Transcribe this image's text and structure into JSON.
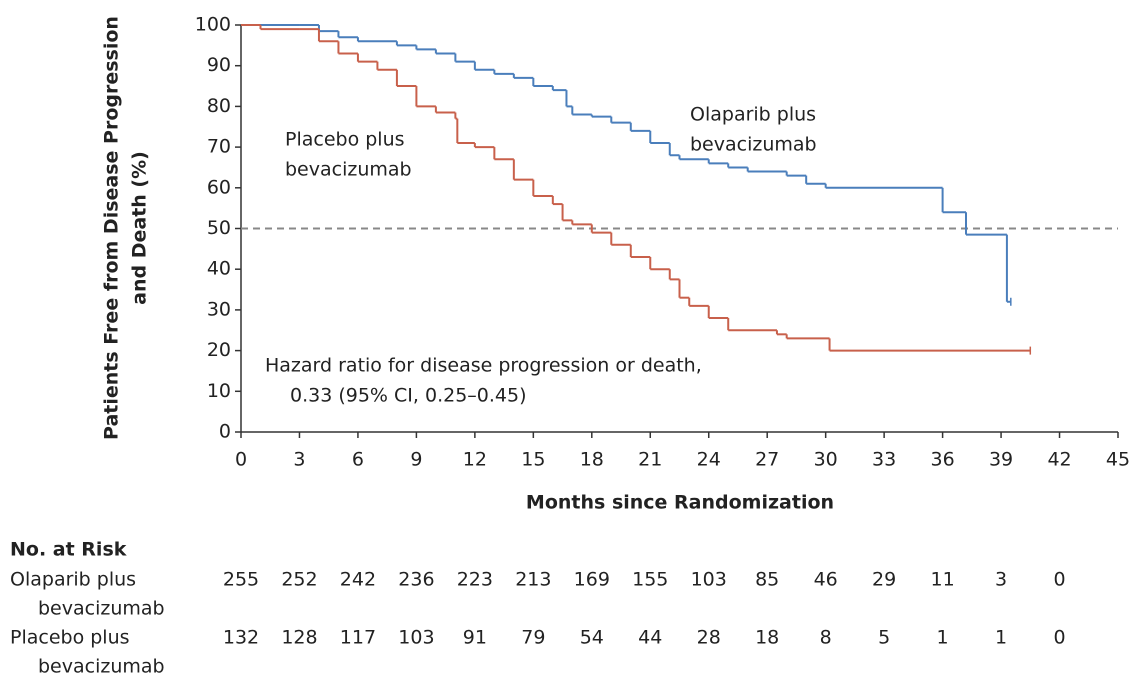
{
  "chart_data": {
    "type": "step",
    "y_label": [
      "Patients Free from Disease Progression",
      "and Death (%)"
    ],
    "x_label": "Months since Randomization",
    "xlim": [
      0,
      45
    ],
    "xticks": [
      0,
      3,
      6,
      9,
      12,
      15,
      18,
      21,
      24,
      27,
      30,
      33,
      36,
      39,
      42,
      45
    ],
    "ylim": [
      0,
      100
    ],
    "yticks": [
      0,
      10,
      20,
      30,
      40,
      50,
      60,
      70,
      80,
      90,
      100
    ],
    "reference_line": 50,
    "series": [
      {
        "name": [
          "Olaparib plus",
          "bevacizumab"
        ],
        "color": "#4a7ebb",
        "x": [
          0,
          3,
          4,
          5,
          6,
          8,
          9,
          10,
          11,
          12,
          13,
          14,
          15,
          16,
          16.7,
          17,
          18,
          19,
          20,
          21,
          22,
          22.5,
          24,
          25,
          26,
          28,
          29,
          30,
          36,
          37.2,
          39.3,
          39.5
        ],
        "values": [
          100,
          100,
          98.5,
          97,
          96,
          95,
          94,
          93,
          91,
          89,
          88,
          87,
          85,
          84,
          80,
          78,
          77.5,
          76,
          74,
          71,
          68,
          67,
          66,
          65,
          64,
          63,
          61,
          60,
          54,
          48.5,
          32,
          32
        ]
      },
      {
        "name": [
          "Placebo plus",
          "bevacizumab"
        ],
        "color": "#c8604b",
        "x": [
          0,
          1,
          3,
          4,
          5,
          6,
          7,
          8,
          9,
          10,
          11,
          11.1,
          12,
          13,
          14,
          15,
          16,
          16.5,
          17,
          18,
          19,
          20,
          21,
          22,
          22.5,
          23,
          24,
          25,
          27.5,
          28,
          30.2,
          40.5
        ],
        "values": [
          100,
          99,
          99,
          96,
          93,
          91,
          89,
          85,
          80,
          78.5,
          77,
          71,
          70,
          67,
          62,
          58,
          56,
          52,
          51,
          49,
          46,
          43,
          40,
          37.5,
          33,
          31,
          28,
          25,
          24,
          23,
          20,
          20
        ]
      }
    ],
    "annotation": [
      "Hazard ratio for disease progression or death,",
      "0.33 (95% CI, 0.25–0.45)"
    ]
  },
  "risk_table": {
    "title": "No. at Risk",
    "rows": [
      {
        "label": [
          "Olaparib plus",
          "bevacizumab"
        ],
        "values": [
          255,
          252,
          242,
          236,
          223,
          213,
          169,
          155,
          103,
          85,
          46,
          29,
          11,
          3,
          0
        ]
      },
      {
        "label": [
          "Placebo plus",
          "bevacizumab"
        ],
        "values": [
          132,
          128,
          117,
          103,
          91,
          79,
          54,
          44,
          28,
          18,
          8,
          5,
          1,
          1,
          0
        ]
      }
    ]
  }
}
